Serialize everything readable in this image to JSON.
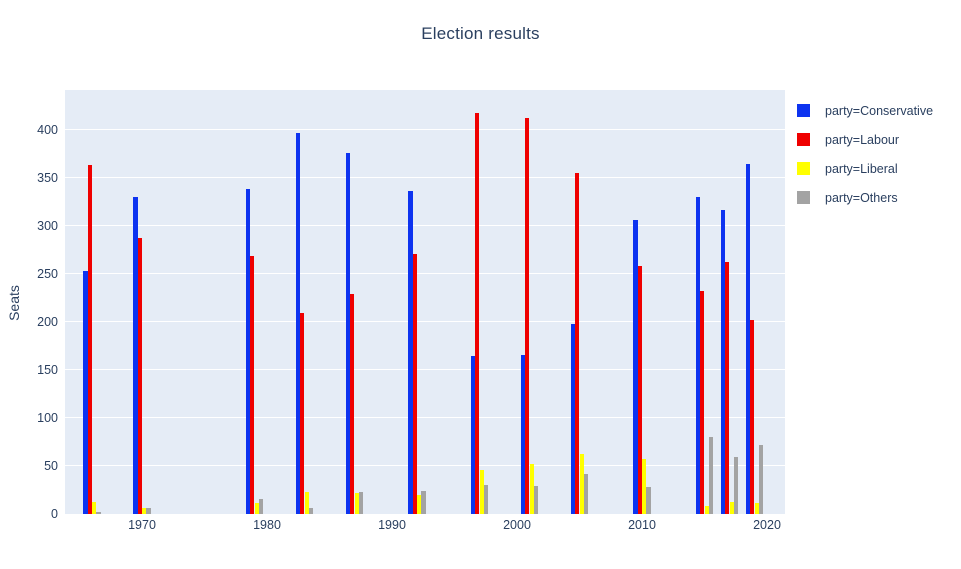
{
  "title": "Election results",
  "y_axis": {
    "label": "Seats",
    "ticks": [
      0,
      50,
      100,
      150,
      200,
      250,
      300,
      350,
      400
    ]
  },
  "x_axis": {
    "ticks": [
      1970,
      1980,
      1990,
      2000,
      2010,
      2020
    ]
  },
  "legend": {
    "items": [
      {
        "label": "party=Conservative",
        "color": "#0d33f0"
      },
      {
        "label": "party=Labour",
        "color": "#ef0000"
      },
      {
        "label": "party=Liberal",
        "color": "#ffff00"
      },
      {
        "label": "party=Others",
        "color": "#a3a3a3"
      }
    ]
  },
  "colors": {
    "plot_background": "#e5ecf6",
    "gridline": "#ffffff",
    "text": "#2a3f5f"
  },
  "chart_data": {
    "type": "bar",
    "title": "Election results",
    "xlabel": "",
    "ylabel": "Seats",
    "ylim": [
      0,
      442
    ],
    "grid": true,
    "legend_position": "right",
    "x": [
      1966,
      1970,
      1979,
      1983,
      1987,
      1992,
      1997,
      2001,
      2005,
      2010,
      2015,
      2017,
      2019
    ],
    "x_tick_labels": [
      1970,
      1980,
      1990,
      2000,
      2010,
      2020
    ],
    "y_tick_labels": [
      0,
      50,
      100,
      150,
      200,
      250,
      300,
      350,
      400
    ],
    "series": [
      {
        "name": "party=Conservative",
        "color": "#0d33f0",
        "values": [
          253,
          330,
          339,
          397,
          376,
          336,
          165,
          166,
          198,
          306,
          330,
          317,
          365
        ]
      },
      {
        "name": "party=Labour",
        "color": "#ef0000",
        "values": [
          364,
          288,
          269,
          209,
          229,
          271,
          418,
          412,
          355,
          258,
          232,
          262,
          202
        ]
      },
      {
        "name": "party=Liberal",
        "color": "#ffff00",
        "values": [
          12,
          6,
          11,
          23,
          22,
          20,
          46,
          52,
          62,
          57,
          8,
          12,
          11
        ]
      },
      {
        "name": "party=Others",
        "color": "#a3a3a3",
        "values": [
          2,
          6,
          16,
          6,
          23,
          24,
          30,
          29,
          42,
          28,
          80,
          59,
          72
        ]
      }
    ]
  }
}
